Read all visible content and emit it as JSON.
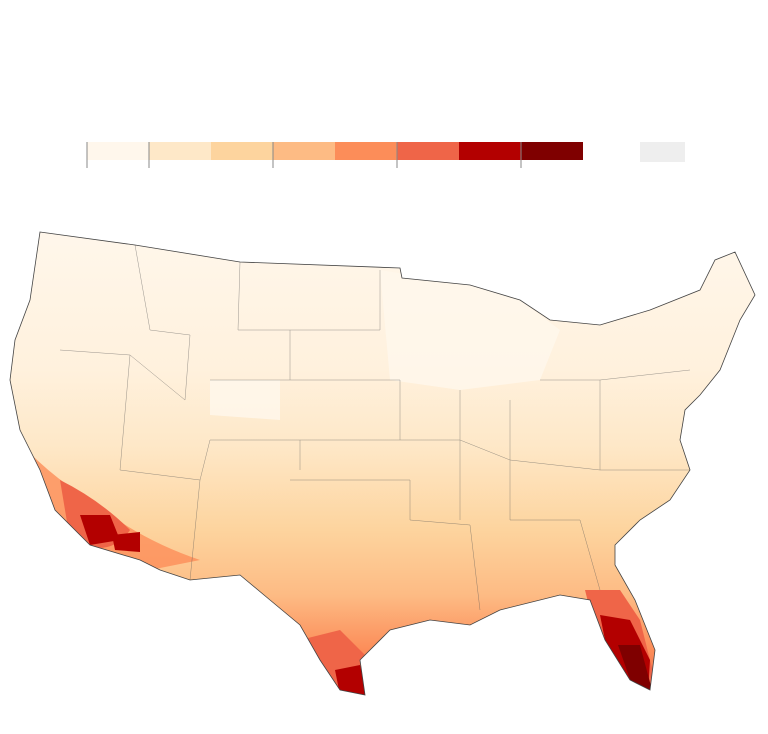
{
  "legend": {
    "colors": [
      "#fff7ec",
      "#fee8c8",
      "#fdd49e",
      "#fdbb84",
      "#fc8d59",
      "#ef6548",
      "#b30000",
      "#7f0000"
    ],
    "no_data_color": "#eeeeee"
  }
}
